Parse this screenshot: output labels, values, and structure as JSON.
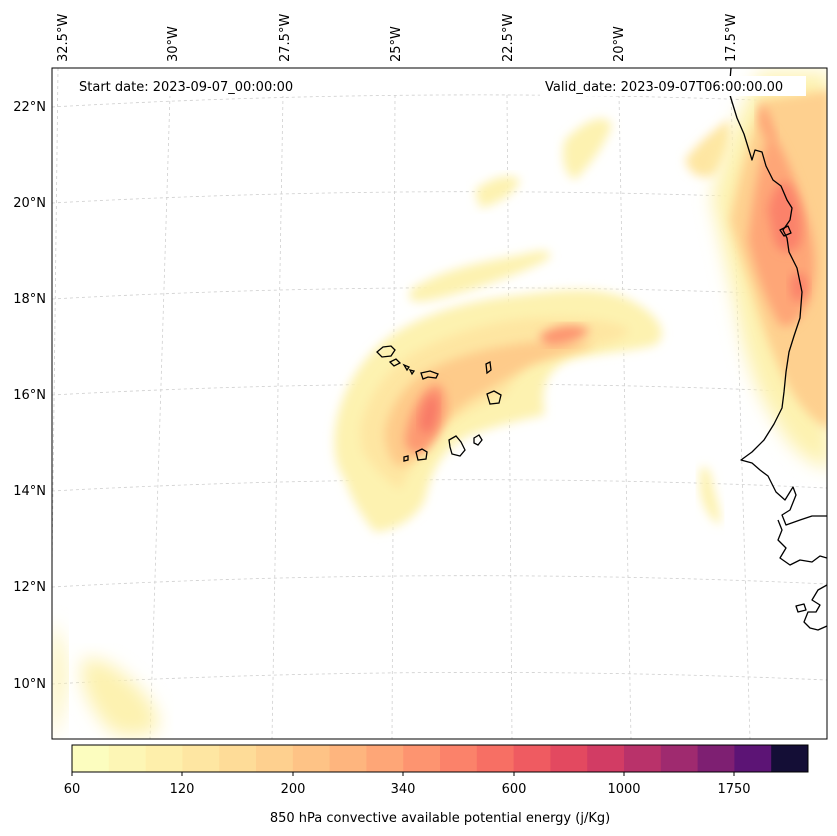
{
  "map": {
    "top_labels": [
      "32.5°W",
      "30°W",
      "27.5°W",
      "25°W",
      "22.5°W",
      "20°W",
      "17.5°W"
    ],
    "left_labels": [
      "22°N",
      "20°N",
      "18°N",
      "16°N",
      "14°N",
      "12°N",
      "10°N"
    ],
    "start_date": "Start date: 2023-09-07_00:00:00",
    "valid_date": "Valid_date: 2023-09-07T06:00:00.00"
  },
  "colorbar": {
    "tick_labels": [
      "60",
      "120",
      "200",
      "340",
      "600",
      "1000",
      "1750"
    ],
    "label": "850 hPa convective available potential energy (j/Kg)",
    "colors": [
      "#fcfdbf",
      "#fdf6b5",
      "#feefab",
      "#fee6a2",
      "#fedc98",
      "#fed08f",
      "#fec386",
      "#feb57e",
      "#fea677",
      "#fd9470",
      "#fb826a",
      "#f76f64",
      "#ef5b61",
      "#e34960",
      "#d23c64",
      "#b9326a",
      "#9f2a6f",
      "#7e1f72",
      "#5c1475",
      "#140e36"
    ]
  }
}
